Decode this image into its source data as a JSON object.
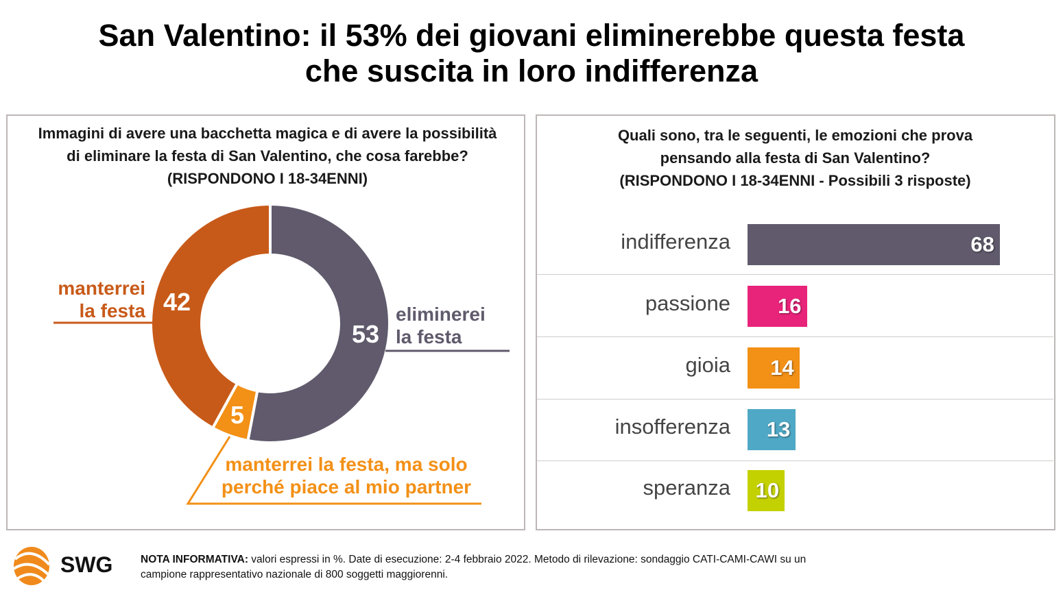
{
  "title": {
    "line1": "San Valentino: il 53% dei giovani eliminerebbe questa festa",
    "line2": "che suscita in loro indifferenza"
  },
  "chart_data": [
    {
      "type": "pie",
      "title": "Immagini di avere una bacchetta magica e di avere la possibilità di eliminare la festa di San Valentino, che cosa farebbe? (RISPONDONO I 18-34ENNI)",
      "question_lines": [
        "Immagini di avere una bacchetta magica e di avere la possibilità",
        "di eliminare la festa di San Valentino, che cosa farebbe?",
        "(RISPONDONO I 18-34ENNI)"
      ],
      "slices": [
        {
          "label": "eliminerei la festa",
          "label_lines": [
            "eliminerei",
            "la festa"
          ],
          "value": 53,
          "display": "53",
          "color": "#605a6c"
        },
        {
          "label": "manterrei la festa, ma solo perché piace al mio partner",
          "label_lines": [
            "manterrei la festa, ma solo",
            "perché piace al mio partner"
          ],
          "value": 5,
          "display": "5",
          "color": "#f39016"
        },
        {
          "label": "manterrei la festa",
          "label_lines": [
            "manterrei",
            "la festa"
          ],
          "value": 42,
          "display": "42",
          "color": "#c85a19"
        }
      ]
    },
    {
      "type": "bar",
      "orientation": "horizontal",
      "title": "Quali sono, tra le seguenti, le emozioni che prova pensando alla festa di San Valentino? (RISPONDONO I 18-34ENNI - Possibili 3 risposte)",
      "question_lines": [
        "Quali sono, tra le seguenti, le emozioni che prova",
        "pensando alla festa di San Valentino?",
        "(RISPONDONO I 18-34ENNI - Possibili 3 risposte)"
      ],
      "categories": [
        "indifferenza",
        "passione",
        "gioia",
        "insofferenza",
        "speranza"
      ],
      "values": [
        68,
        16,
        14,
        13,
        10
      ],
      "colors": [
        "#605a6c",
        "#e8247a",
        "#f39016",
        "#4fa8c5",
        "#c4d100"
      ]
    }
  ],
  "footer": {
    "logo": "SWG",
    "note_label": "NOTA INFORMATIVA:",
    "note_line1": " valori espressi in %. Date di esecuzione: 2-4 febbraio 2022. Metodo di rilevazione: sondaggio CATI-CAMI-CAWI su un",
    "note_line2": "campione rappresentativo nazionale di 800 soggetti maggiorenni."
  }
}
